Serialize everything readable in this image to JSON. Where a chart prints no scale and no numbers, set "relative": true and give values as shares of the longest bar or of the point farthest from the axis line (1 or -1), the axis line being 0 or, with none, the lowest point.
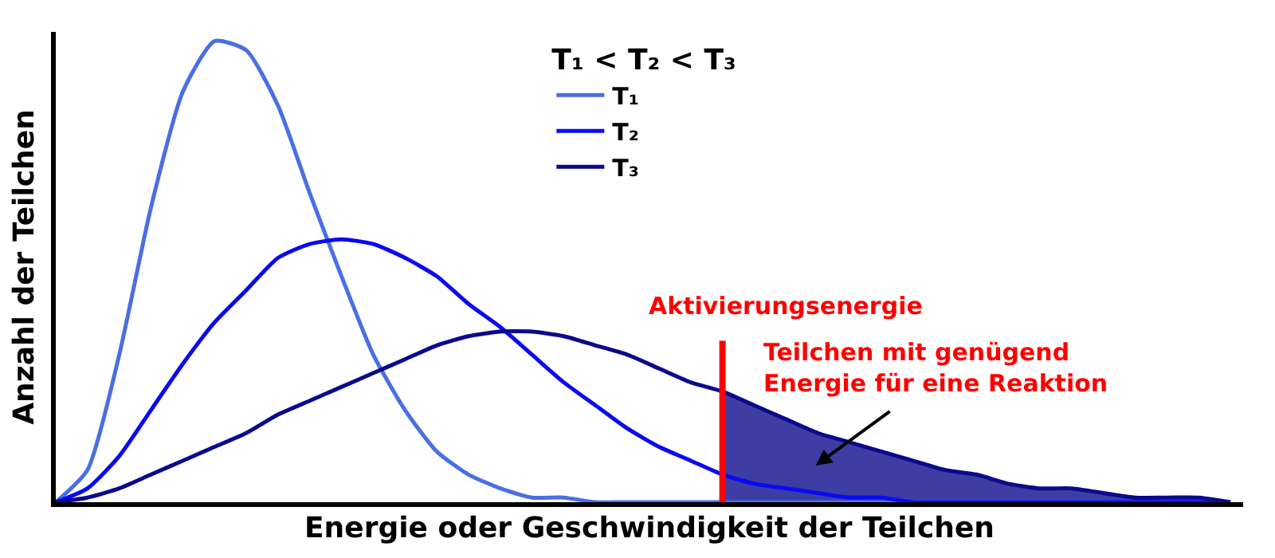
{
  "chart_data": {
    "type": "line",
    "relative": true,
    "xlabel": "Energie oder Geschwindigkeit der Teilchen",
    "ylabel": "Anzahl der Teilchen",
    "legend_title": "T₁ < T₂ < T₃",
    "legend": "top",
    "tick_labels": false,
    "marker": "none",
    "line_style": "solid",
    "categories": [
      null,
      null,
      null,
      null,
      null,
      null,
      null,
      null,
      null,
      null,
      null,
      null,
      null,
      null,
      null,
      null,
      null,
      null,
      null,
      null,
      null,
      null,
      null,
      null,
      null,
      null,
      null,
      null,
      null,
      null,
      null,
      null,
      null,
      null,
      null,
      null,
      null,
      null
    ],
    "series": [
      {
        "name": "T₁",
        "color": "#4a6fe3",
        "values": [
          0,
          0.07,
          0.32,
          0.64,
          0.89,
          1,
          0.98,
          0.86,
          0.67,
          0.49,
          0.32,
          0.2,
          0.11,
          0.06,
          0.03,
          0.01,
          0.01,
          0,
          0,
          0,
          0,
          0,
          0,
          0,
          0,
          0,
          0,
          0,
          0,
          0,
          0,
          0,
          0,
          0,
          0,
          0,
          0,
          0
        ]
      },
      {
        "name": "T₂",
        "color": "#0a0af0",
        "values": [
          0,
          0.03,
          0.1,
          0.2,
          0.3,
          0.39,
          0.46,
          0.53,
          0.56,
          0.57,
          0.56,
          0.53,
          0.49,
          0.43,
          0.38,
          0.32,
          0.26,
          0.21,
          0.16,
          0.12,
          0.09,
          0.06,
          0.04,
          0.03,
          0.02,
          0.01,
          0.01,
          0,
          0,
          0,
          0,
          0,
          0,
          0,
          0,
          0,
          0,
          0
        ]
      },
      {
        "name": "T₃",
        "color": "#0a0a8c",
        "values": [
          0,
          0.01,
          0.03,
          0.06,
          0.09,
          0.12,
          0.15,
          0.19,
          0.22,
          0.25,
          0.28,
          0.31,
          0.34,
          0.36,
          0.37,
          0.37,
          0.36,
          0.34,
          0.32,
          0.29,
          0.26,
          0.24,
          0.21,
          0.18,
          0.15,
          0.13,
          0.11,
          0.09,
          0.07,
          0.06,
          0.04,
          0.03,
          0.03,
          0.02,
          0.01,
          0.01,
          0.01,
          0
        ]
      },
      {
        "type": "area",
        "color": "#3d3da3",
        "values": [
          null,
          null,
          null,
          null,
          null,
          null,
          null,
          null,
          null,
          null,
          null,
          null,
          null,
          null,
          null,
          null,
          null,
          null,
          null,
          null,
          null,
          0.24,
          0.21,
          0.18,
          0.15,
          0.13,
          0.11,
          0.09,
          0.07,
          0.06,
          0.04,
          0.03,
          0.03,
          0.02,
          0.01,
          0.01,
          0.01,
          0
        ]
      }
    ],
    "annotations": [
      "Aktivierungsenergie",
      "Teilchen mit genügend\nEnergie für eine Reaktion"
    ]
  }
}
